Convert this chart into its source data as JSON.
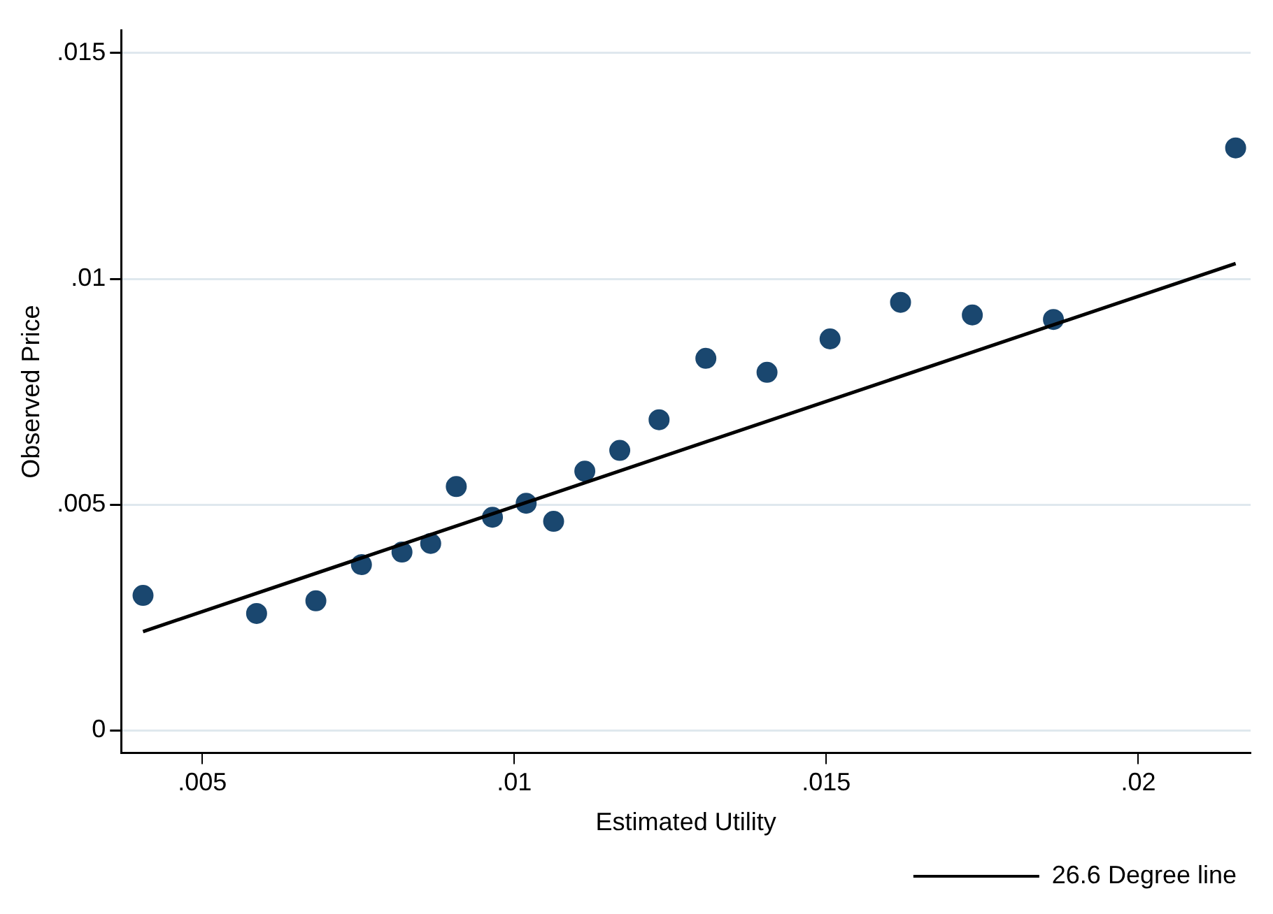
{
  "chart_data": {
    "type": "scatter",
    "xlabel": "Estimated Utility",
    "ylabel": "Observed Price",
    "xlim": [
      0.0037,
      0.0218
    ],
    "ylim": [
      -0.0005,
      0.0155
    ],
    "xticks": [
      {
        "value": 0.005,
        "label": ".005"
      },
      {
        "value": 0.01,
        "label": ".01"
      },
      {
        "value": 0.015,
        "label": ".015"
      },
      {
        "value": 0.02,
        "label": ".02"
      }
    ],
    "yticks": [
      0,
      {
        "value": 0.005,
        "label": ".005"
      },
      {
        "value": 0.01,
        "label": ".01"
      },
      {
        "value": 0.015,
        "label": ".015"
      }
    ],
    "grid": "y",
    "legend": "bottom right",
    "series": [
      {
        "type": "scatter",
        "marker": "circle",
        "color": "#1a476f",
        "x": [
          0.00405,
          0.00587,
          0.00682,
          0.00755,
          0.0082,
          0.00866,
          0.00907,
          0.00965,
          0.01019,
          0.01063,
          0.01113,
          0.01169,
          0.01232,
          0.01307,
          0.01405,
          0.01506,
          0.01619,
          0.01734,
          0.01864,
          0.02156
        ],
        "values": [
          0.00299,
          0.00259,
          0.00287,
          0.00367,
          0.00395,
          0.00414,
          0.0054,
          0.00472,
          0.00503,
          0.00463,
          0.00574,
          0.0062,
          0.00688,
          0.00824,
          0.00793,
          0.00867,
          0.00948,
          0.0092,
          0.0091,
          0.0129
        ]
      },
      {
        "type": "line",
        "marker": "none",
        "name": "26.6 Degree line",
        "color": "#000000",
        "x": [
          0.00405,
          0.02156
        ],
        "values": [
          0.00219,
          0.01034
        ]
      }
    ]
  }
}
